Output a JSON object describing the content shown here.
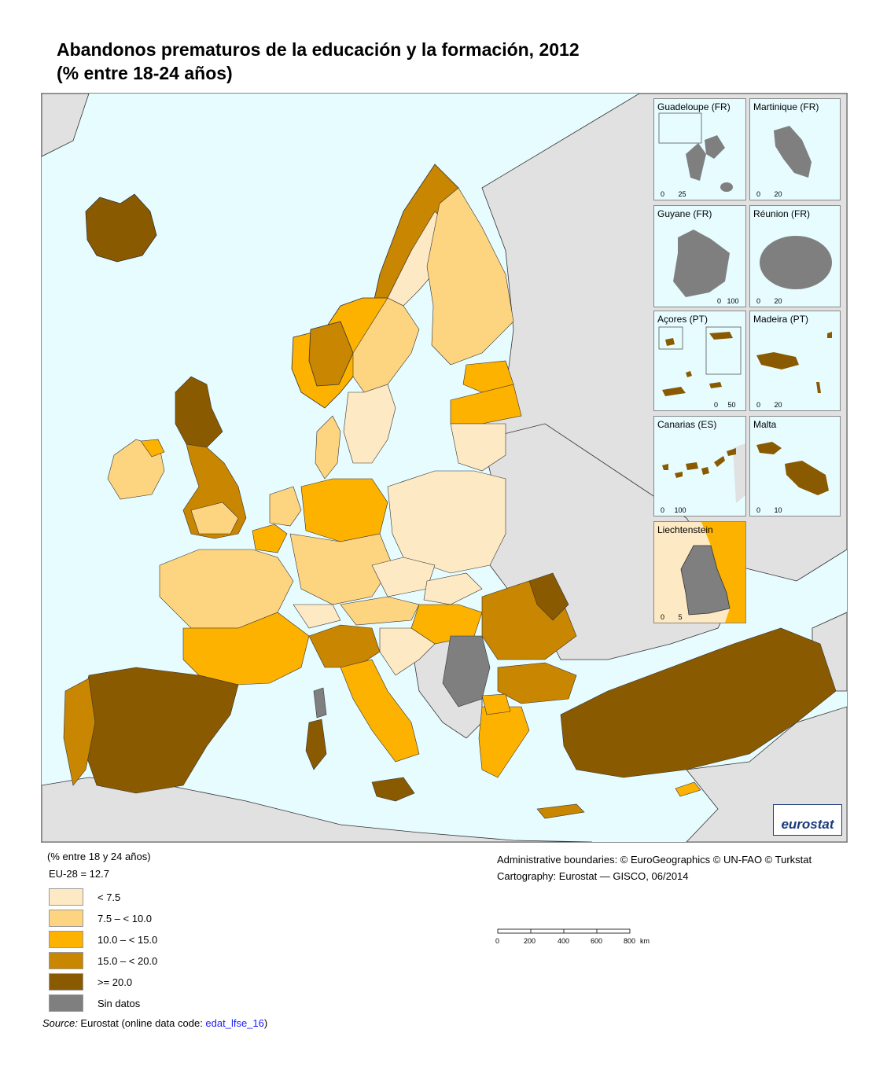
{
  "title_line1": "Abandonos prematuros de la educación y la formación, 2012",
  "title_line2": "(% entre 18-24 años)",
  "colors": {
    "sea": "#e6fcff",
    "non_eu": "#e1e1e1",
    "lt_7_5": "#fde9c3",
    "7_5_10": "#fdd581",
    "10_15": "#fdb200",
    "15_20": "#c98600",
    "ge_20": "#8a5a00",
    "no_data": "#7f7f7f"
  },
  "insets": [
    {
      "label": "Guadeloupe (FR)",
      "scale_labels": [
        "0",
        "25"
      ]
    },
    {
      "label": "Martinique (FR)",
      "scale_labels": [
        "0",
        "20"
      ]
    },
    {
      "label": "Guyane (FR)",
      "scale_labels": [
        "0",
        "100"
      ]
    },
    {
      "label": "Réunion (FR)",
      "scale_labels": [
        "0",
        "20"
      ]
    },
    {
      "label": "Açores (PT)",
      "scale_labels": [
        "0",
        "50"
      ]
    },
    {
      "label": "Madeira (PT)",
      "scale_labels": [
        "0",
        "20"
      ]
    },
    {
      "label": "Canarias (ES)",
      "scale_labels": [
        "0",
        "100"
      ]
    },
    {
      "label": "Malta",
      "scale_labels": [
        "0",
        "10"
      ]
    },
    {
      "label": "Liechtenstein",
      "scale_labels": [
        "0",
        "5"
      ]
    }
  ],
  "logo_text": "eurostat",
  "legend": {
    "unit": "(% entre 18 y 24 años)",
    "eu_value": "EU-28 = 12.7",
    "classes": [
      {
        "label": "< 7.5",
        "color": "#fde9c3"
      },
      {
        "label": "7.5 – < 10.0",
        "color": "#fdd581"
      },
      {
        "label": "10.0 – < 15.0",
        "color": "#fdb200"
      },
      {
        "label": "15.0 – < 20.0",
        "color": "#c98600"
      },
      {
        "label": ">= 20.0",
        "color": "#8a5a00"
      },
      {
        "label": "Sin datos",
        "color": "#7f7f7f"
      }
    ]
  },
  "credits": {
    "line1": "Administrative boundaries: © EuroGeographics © UN-FAO © Turkstat",
    "line2": "Cartography: Eurostat — GISCO, 06/2014"
  },
  "scale_bar": {
    "ticks": [
      "0",
      "200",
      "400",
      "600",
      "800"
    ],
    "unit": "km"
  },
  "source": {
    "prefix": "Source:",
    "text": " Eurostat (online data code: ",
    "code": "edat_lfse_16",
    "suffix": ")"
  }
}
